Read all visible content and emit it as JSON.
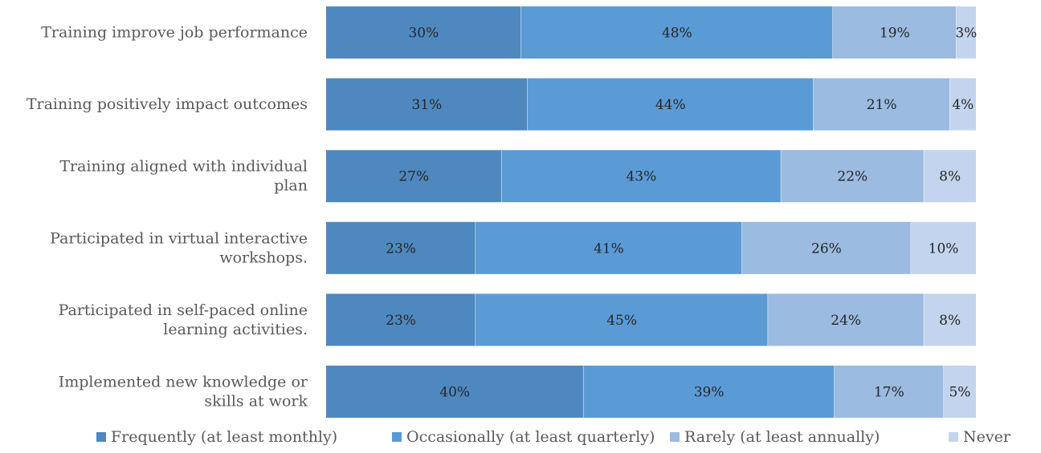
{
  "chart_data": {
    "type": "bar",
    "orientation": "horizontal",
    "stacked": "percent",
    "categories": [
      [
        "Training improve job performance"
      ],
      [
        "Training positively impact outcomes"
      ],
      [
        "Training aligned with individual",
        "plan"
      ],
      [
        "Participated in virtual interactive",
        "workshops."
      ],
      [
        "Participated in self-paced online",
        "learning activities."
      ],
      [
        "Implemented new knowledge or",
        "skills at work"
      ]
    ],
    "series": [
      {
        "name": "Frequently (at least monthly)",
        "color": "#4f88bf",
        "values": [
          30,
          31,
          27,
          23,
          23,
          40
        ]
      },
      {
        "name": "Occasionally (at least quarterly)",
        "color": "#5b9bd5",
        "values": [
          48,
          44,
          43,
          41,
          45,
          39
        ]
      },
      {
        "name": "Rarely (at least annually)",
        "color": "#9bbbe0",
        "values": [
          19,
          21,
          22,
          26,
          24,
          17
        ]
      },
      {
        "name": "Never",
        "color": "#c3d4ee",
        "values": [
          3,
          4,
          8,
          10,
          8,
          5
        ]
      }
    ],
    "value_suffix": "%",
    "legend_position": "bottom",
    "grid": false
  }
}
